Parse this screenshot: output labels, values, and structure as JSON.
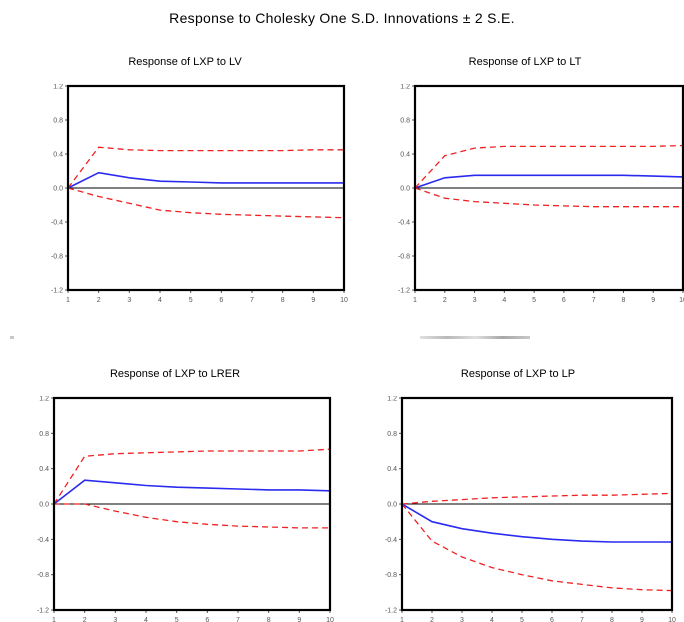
{
  "title": "Response to Cholesky One S.D. Innovations ± 2 S.E.",
  "colors": {
    "response": "#2b2bf0",
    "band": "#ee2222",
    "zero": "#000000",
    "frame": "#000000"
  },
  "chart_data": [
    {
      "type": "line",
      "title": "Response of LXP to LV",
      "x": [
        1,
        2,
        3,
        4,
        5,
        6,
        7,
        8,
        9,
        10
      ],
      "ylim": [
        -1.2,
        1.2
      ],
      "yticks": [
        "1.2",
        "0.8",
        "0.4",
        "0.0",
        "-0.4",
        "-0.8",
        "-1.2"
      ],
      "xticks": [
        "1",
        "2",
        "3",
        "4",
        "5",
        "6",
        "7",
        "8",
        "9",
        "10"
      ],
      "series": [
        {
          "role": "response",
          "values": [
            0.0,
            0.18,
            0.12,
            0.08,
            0.07,
            0.06,
            0.06,
            0.06,
            0.06,
            0.06
          ]
        },
        {
          "role": "upper",
          "values": [
            0.0,
            0.48,
            0.45,
            0.44,
            0.44,
            0.44,
            0.44,
            0.44,
            0.45,
            0.45
          ]
        },
        {
          "role": "lower",
          "values": [
            0.0,
            -0.1,
            -0.18,
            -0.26,
            -0.29,
            -0.31,
            -0.32,
            -0.33,
            -0.34,
            -0.35
          ]
        }
      ]
    },
    {
      "type": "line",
      "title": "Response of LXP to LT",
      "x": [
        1,
        2,
        3,
        4,
        5,
        6,
        7,
        8,
        9,
        10
      ],
      "ylim": [
        -1.2,
        1.2
      ],
      "yticks": [
        "1.2",
        "0.8",
        "0.4",
        "0.0",
        "-0.4",
        "-0.8",
        "-1.2"
      ],
      "xticks": [
        "1",
        "2",
        "3",
        "4",
        "5",
        "6",
        "7",
        "8",
        "9",
        "10"
      ],
      "series": [
        {
          "role": "response",
          "values": [
            0.0,
            0.12,
            0.15,
            0.15,
            0.15,
            0.15,
            0.15,
            0.15,
            0.14,
            0.13
          ]
        },
        {
          "role": "upper",
          "values": [
            0.0,
            0.38,
            0.47,
            0.49,
            0.49,
            0.49,
            0.49,
            0.49,
            0.49,
            0.5
          ]
        },
        {
          "role": "lower",
          "values": [
            0.0,
            -0.12,
            -0.16,
            -0.18,
            -0.2,
            -0.21,
            -0.22,
            -0.22,
            -0.22,
            -0.22
          ]
        }
      ]
    },
    {
      "type": "line",
      "title": "Response of LXP to LRER",
      "x": [
        1,
        2,
        3,
        4,
        5,
        6,
        7,
        8,
        9,
        10
      ],
      "ylim": [
        -1.2,
        1.2
      ],
      "yticks": [
        "1.2",
        "0.8",
        "0.4",
        "0.0",
        "-0.4",
        "-0.8",
        "-1.2"
      ],
      "xticks": [
        "1",
        "2",
        "3",
        "4",
        "5",
        "6",
        "7",
        "8",
        "9",
        "10"
      ],
      "series": [
        {
          "role": "response",
          "values": [
            0.0,
            0.27,
            0.24,
            0.21,
            0.19,
            0.18,
            0.17,
            0.16,
            0.16,
            0.15
          ]
        },
        {
          "role": "upper",
          "values": [
            0.0,
            0.54,
            0.57,
            0.58,
            0.59,
            0.6,
            0.6,
            0.6,
            0.6,
            0.62
          ]
        },
        {
          "role": "lower",
          "values": [
            0.0,
            0.0,
            -0.08,
            -0.15,
            -0.2,
            -0.23,
            -0.25,
            -0.26,
            -0.27,
            -0.27
          ]
        }
      ]
    },
    {
      "type": "line",
      "title": "Response of LXP to LP",
      "x": [
        1,
        2,
        3,
        4,
        5,
        6,
        7,
        8,
        9,
        10
      ],
      "ylim": [
        -1.2,
        1.2
      ],
      "yticks": [
        "1.2",
        "0.8",
        "0.4",
        "0.0",
        "-0.4",
        "-0.8",
        "-1.2"
      ],
      "xticks": [
        "1",
        "2",
        "3",
        "4",
        "5",
        "6",
        "7",
        "8",
        "9",
        "10"
      ],
      "series": [
        {
          "role": "response",
          "values": [
            0.0,
            -0.2,
            -0.28,
            -0.33,
            -0.37,
            -0.4,
            -0.42,
            -0.43,
            -0.43,
            -0.43
          ]
        },
        {
          "role": "upper",
          "values": [
            0.0,
            0.03,
            0.05,
            0.07,
            0.08,
            0.09,
            0.1,
            0.1,
            0.11,
            0.12
          ]
        },
        {
          "role": "lower",
          "values": [
            0.0,
            -0.42,
            -0.6,
            -0.72,
            -0.8,
            -0.87,
            -0.91,
            -0.95,
            -0.97,
            -0.98
          ]
        }
      ]
    }
  ]
}
